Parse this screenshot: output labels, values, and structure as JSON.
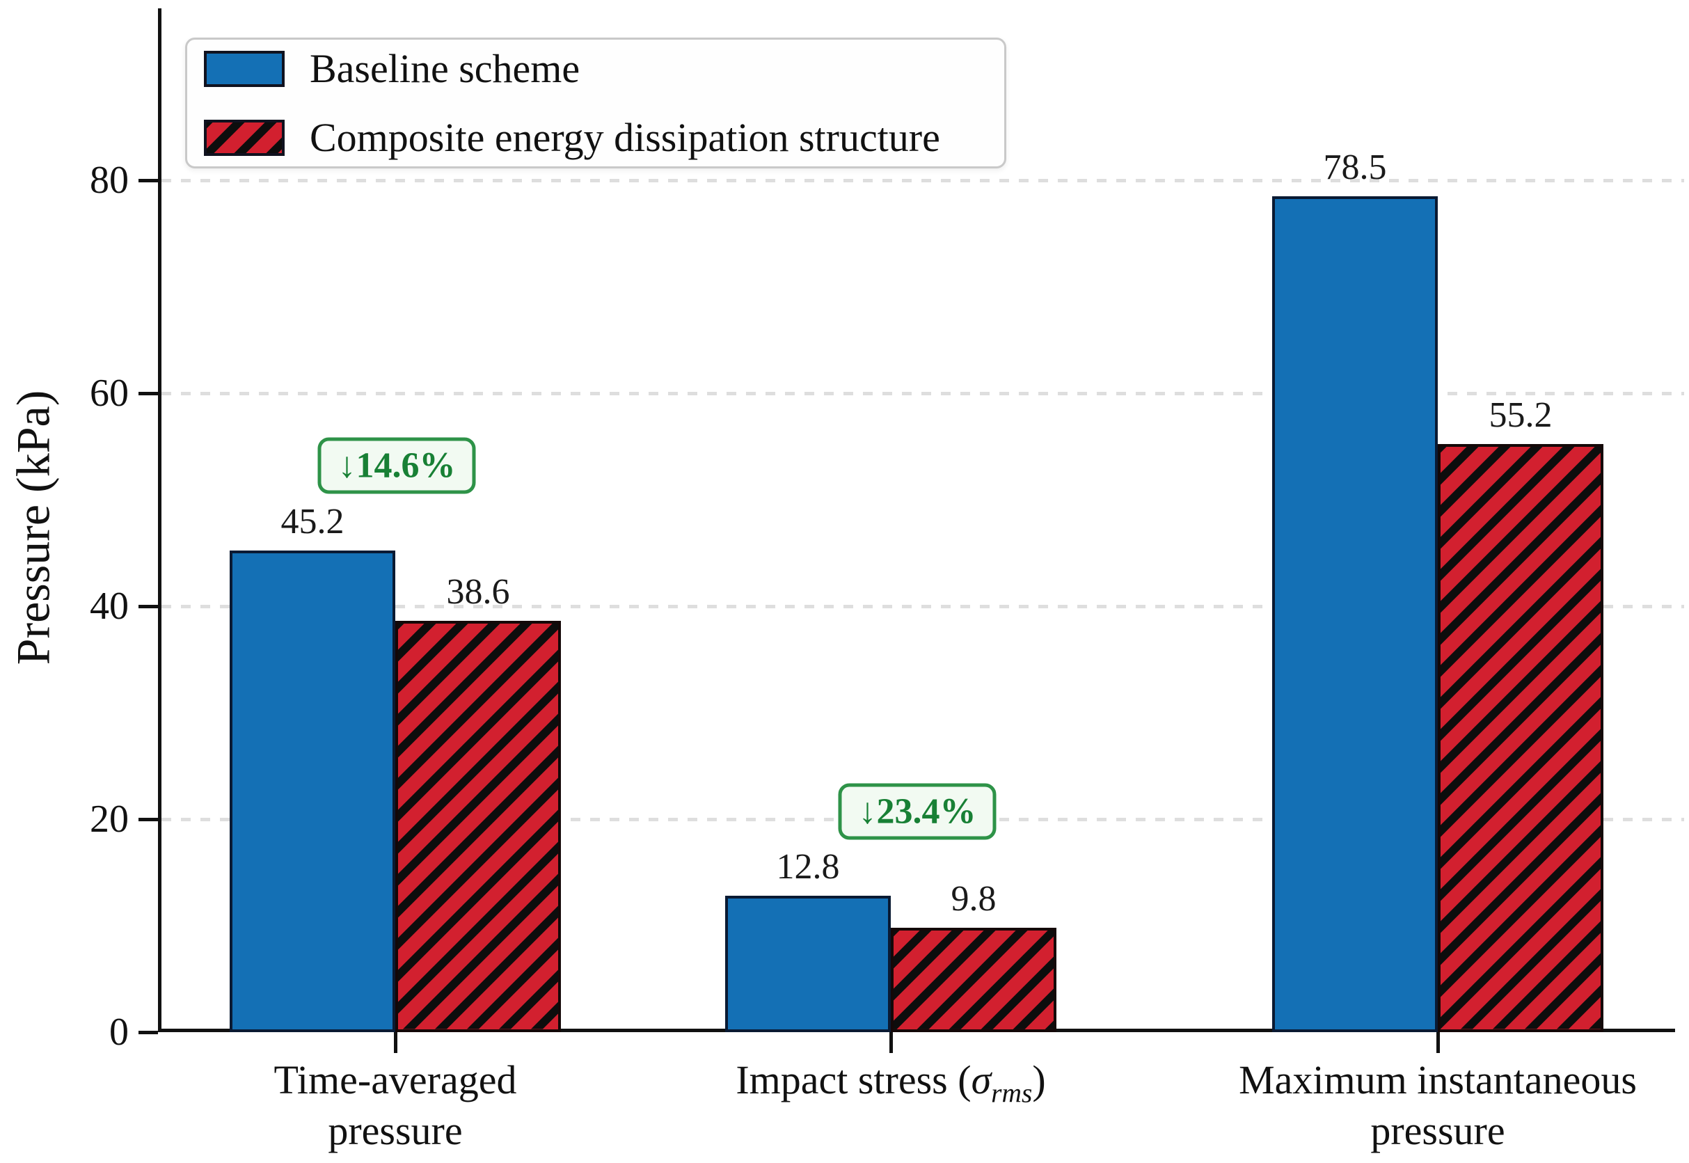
{
  "chart_data": {
    "type": "bar",
    "title": "",
    "ylabel": "Pressure (kPa)",
    "xlabel": "",
    "ylim": [
      0,
      95.9
    ],
    "yticks": [
      0,
      20,
      40,
      60,
      80
    ],
    "grid": "horizontal dashed lines at 20, 40, 60, 80",
    "legend_position": "upper left",
    "categories": [
      [
        "Time-averaged",
        "pressure"
      ],
      [
        "Impact stress (σ_{rms})"
      ],
      [
        "Maximum instantaneous",
        "pressure"
      ]
    ],
    "series": [
      {
        "name": "Baseline scheme",
        "values": [
          45.2,
          12.8,
          78.5
        ],
        "fill": "#1470b5",
        "edge": "#0a1a33",
        "hatch": null
      },
      {
        "name": "Composite energy dissipation structure",
        "values": [
          38.6,
          9.8,
          55.2
        ],
        "fill": "#d2202f",
        "edge": "#140808",
        "hatch": "/"
      }
    ],
    "value_labels": {
      "baseline": [
        "45.2",
        "12.8",
        "78.5"
      ],
      "composite": [
        "38.6",
        "9.8",
        "55.2"
      ]
    },
    "annotations": [
      {
        "text": "↓14.6%",
        "applies_to": "Time-averaged pressure"
      },
      {
        "text": "↓23.4%",
        "applies_to": "Impact stress (σ rms)"
      }
    ]
  },
  "legend": {
    "items": [
      {
        "label": "Baseline scheme"
      },
      {
        "label": "Composite energy dissipation structure"
      }
    ]
  },
  "colors": {
    "baseline_fill": "#1470b5",
    "composite_fill": "#d2202f",
    "hatch_line": "#0d0d0d",
    "annotation_border": "#2e9348",
    "annotation_text": "#188035",
    "annotation_bg": "#f2faf2",
    "grid": "#dedede",
    "axis": "#111111"
  }
}
